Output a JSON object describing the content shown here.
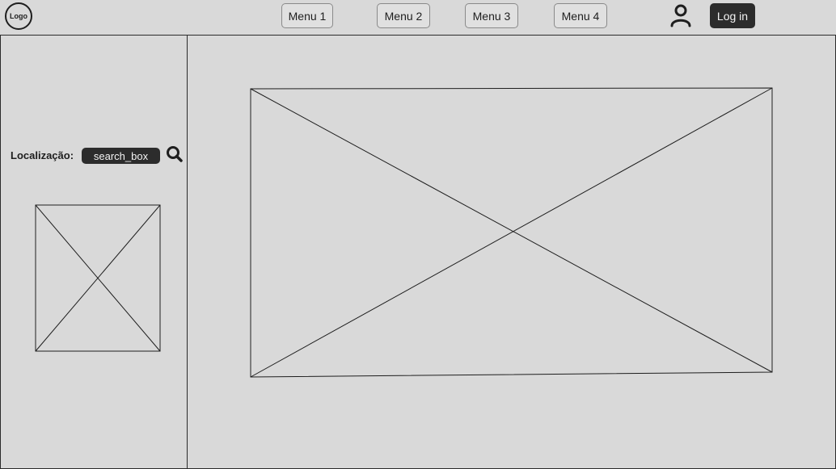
{
  "header": {
    "logo_text": "Logo",
    "menu": [
      {
        "label": "Menu 1"
      },
      {
        "label": "Menu 2"
      },
      {
        "label": "Menu 3"
      },
      {
        "label": "Menu 4"
      }
    ],
    "login_label": "Log in"
  },
  "sidebar": {
    "location_label": "Localização:",
    "search_box_text": "search_box"
  },
  "icons": {
    "user": "user-icon",
    "search": "search-icon"
  }
}
